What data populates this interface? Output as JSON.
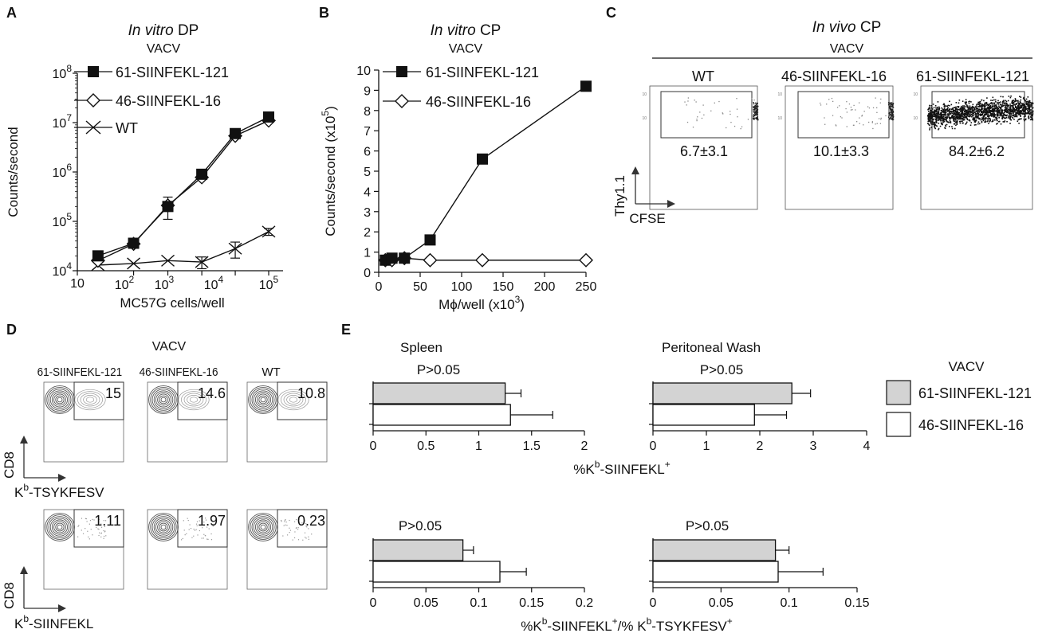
{
  "panelA": {
    "label": "A",
    "title_italic": "In vitro",
    "title_rest": " DP",
    "subtitle": "VACV",
    "xlabel": "MC57G cells/well",
    "ylabel": "Counts/second",
    "xticks": [
      "10",
      "10",
      "2",
      "10",
      "3",
      "10",
      "4",
      "10",
      "5"
    ],
    "yticks": [
      {
        "b": "10",
        "e": "4"
      },
      {
        "b": "10",
        "e": "5"
      },
      {
        "b": "10",
        "e": "6"
      },
      {
        "b": "10",
        "e": "7"
      },
      {
        "b": "10",
        "e": "8"
      }
    ],
    "legend": [
      "61-SIINFEKL-121",
      "46-SIINFEKL-16",
      "WT"
    ]
  },
  "panelB": {
    "label": "B",
    "title_italic": "In vitro",
    "title_rest": " CP",
    "subtitle": "VACV",
    "xlabel_pre": "M",
    "xlabel_phi": "ϕ",
    "xlabel_post": "/well (x10",
    "xlabel_exp": "3",
    "xlabel_close": ")",
    "ylabel_pre": "Counts/second (x10",
    "ylabel_exp": "5",
    "ylabel_close": ")",
    "legend": [
      "61-SIINFEKL-121",
      "46-SIINFEKL-16"
    ]
  },
  "panelC": {
    "label": "C",
    "title_italic": "In vivo",
    "title_rest": " CP",
    "subtitle": "VACV",
    "plots": [
      {
        "name": "WT",
        "gate": "6.7±3.1"
      },
      {
        "name": "46-SIINFEKL-16",
        "gate": "10.1±3.3"
      },
      {
        "name": "61-SIINFEKL-121",
        "gate": "84.2±6.2"
      }
    ],
    "yaxis": "Thy1.1",
    "xaxis": "CFSE"
  },
  "panelD": {
    "label": "D",
    "subtitle": "VACV",
    "columns": [
      "61-SIINFEKL-121",
      "46-SIINFEKL-16",
      "WT"
    ],
    "row1_values": [
      "15",
      "14.6",
      "10.8"
    ],
    "row2_values": [
      "1.11",
      "1.97",
      "0.23"
    ],
    "row1_y": "CD8",
    "row1_x_base": "K",
    "row1_x_sup": "b",
    "row1_x_rest": "-TSYKFESV",
    "row2_y": "CD8",
    "row2_x_base": "K",
    "row2_x_sup": "b",
    "row2_x_rest": "-SIINFEKL"
  },
  "panelE": {
    "label": "E",
    "legend_title": "VACV",
    "legend": [
      "61-SIINFEKL-121",
      "46-SIINFEKL-16"
    ],
    "col_titles": [
      "Spleen",
      "Peritoneal Wash"
    ],
    "pvalues": [
      "P>0.05",
      "P>0.05",
      "P>0.05",
      "P>0.05"
    ],
    "top_xlabel": {
      "a": "%K",
      "b": "b",
      "c": "-SIINFEKL",
      "d": "+"
    },
    "bottom_xlabel": {
      "a": "%K",
      "b": "b",
      "c": "-SIINFEKL",
      "d": "+",
      "e": "/% K",
      "f": "b",
      "g": "-TSYKFESV",
      "h": "+"
    },
    "ticks": {
      "spleen_top": [
        "0",
        "0.5",
        "1",
        "1.5",
        "2"
      ],
      "wash_top": [
        "0",
        "1",
        "2",
        "3",
        "4"
      ],
      "spleen_bottom": [
        "0",
        "0.05",
        "0.1",
        "0.15",
        "0.2"
      ],
      "wash_bottom": [
        "0",
        "0.05",
        "0.1",
        "0.15"
      ]
    }
  },
  "colors": {
    "filled": "#111111",
    "gray_bar": "#d3d3d3",
    "white_bar": "#ffffff"
  },
  "chart_data": [
    {
      "panel": "A",
      "type": "line",
      "title": "In vitro DP",
      "subtitle": "VACV",
      "xlabel": "MC57G cells/well",
      "ylabel": "Counts/second",
      "xscale": "log",
      "yscale": "log",
      "xlim": [
        10,
        100000
      ],
      "ylim": [
        10000,
        100000000
      ],
      "series": [
        {
          "name": "61-SIINFEKL-121",
          "marker": "filled-square",
          "x": [
            27,
            150,
            780,
            4000,
            20000,
            100000
          ],
          "y": [
            20000,
            36000,
            200000,
            900000,
            6000000,
            13000000
          ],
          "err": [
            0,
            0,
            0,
            0,
            0,
            0
          ]
        },
        {
          "name": "46-SIINFEKL-16",
          "marker": "open-diamond",
          "x": [
            27,
            150,
            780,
            4000,
            20000,
            100000
          ],
          "y": [
            16000,
            35000,
            210000,
            780000,
            5400000,
            11000000
          ],
          "err": [
            0,
            0,
            100000,
            0,
            0,
            0
          ]
        },
        {
          "name": "WT",
          "marker": "cross",
          "x": [
            27,
            150,
            780,
            4000,
            20000,
            100000
          ],
          "y": [
            13000,
            14000,
            16000,
            15000,
            28000,
            62000
          ],
          "err": [
            0,
            0,
            0,
            4000,
            10000,
            10000
          ]
        }
      ]
    },
    {
      "panel": "B",
      "type": "line",
      "title": "In vitro CP",
      "subtitle": "VACV",
      "xlabel": "Mϕ/well (x10^3)",
      "ylabel": "Counts/second (x10^5)",
      "xlim": [
        0,
        250
      ],
      "ylim": [
        0,
        10
      ],
      "xticks": [
        0,
        50,
        100,
        150,
        200,
        250
      ],
      "yticks": [
        0,
        1,
        2,
        3,
        4,
        5,
        6,
        7,
        8,
        9,
        10
      ],
      "series": [
        {
          "name": "61-SIINFEKL-121",
          "marker": "filled-square",
          "x": [
            8,
            16,
            31,
            62,
            125,
            250
          ],
          "y": [
            0.6,
            0.7,
            0.7,
            1.6,
            5.6,
            9.2
          ]
        },
        {
          "name": "46-SIINFEKL-16",
          "marker": "open-diamond",
          "x": [
            8,
            16,
            31,
            62,
            125,
            250
          ],
          "y": [
            0.6,
            0.6,
            0.7,
            0.6,
            0.6,
            0.6
          ]
        }
      ]
    },
    {
      "panel": "E-spleen-top",
      "type": "bar",
      "orientation": "horizontal",
      "xlim": [
        0,
        2
      ],
      "series": [
        {
          "name": "61-SIINFEKL-121",
          "value": 1.25,
          "err": 0.15
        },
        {
          "name": "46-SIINFEKL-16",
          "value": 1.3,
          "err": 0.4
        }
      ]
    },
    {
      "panel": "E-wash-top",
      "type": "bar",
      "orientation": "horizontal",
      "xlim": [
        0,
        4
      ],
      "series": [
        {
          "name": "61-SIINFEKL-121",
          "value": 2.6,
          "err": 0.35
        },
        {
          "name": "46-SIINFEKL-16",
          "value": 1.9,
          "err": 0.6
        }
      ]
    },
    {
      "panel": "E-spleen-bottom",
      "type": "bar",
      "orientation": "horizontal",
      "xlim": [
        0,
        0.2
      ],
      "series": [
        {
          "name": "61-SIINFEKL-121",
          "value": 0.085,
          "err": 0.01
        },
        {
          "name": "46-SIINFEKL-16",
          "value": 0.12,
          "err": 0.025
        }
      ]
    },
    {
      "panel": "E-wash-bottom",
      "type": "bar",
      "orientation": "horizontal",
      "xlim": [
        0,
        0.15
      ],
      "series": [
        {
          "name": "61-SIINFEKL-121",
          "value": 0.09,
          "err": 0.01
        },
        {
          "name": "46-SIINFEKL-16",
          "value": 0.092,
          "err": 0.033
        }
      ]
    }
  ]
}
